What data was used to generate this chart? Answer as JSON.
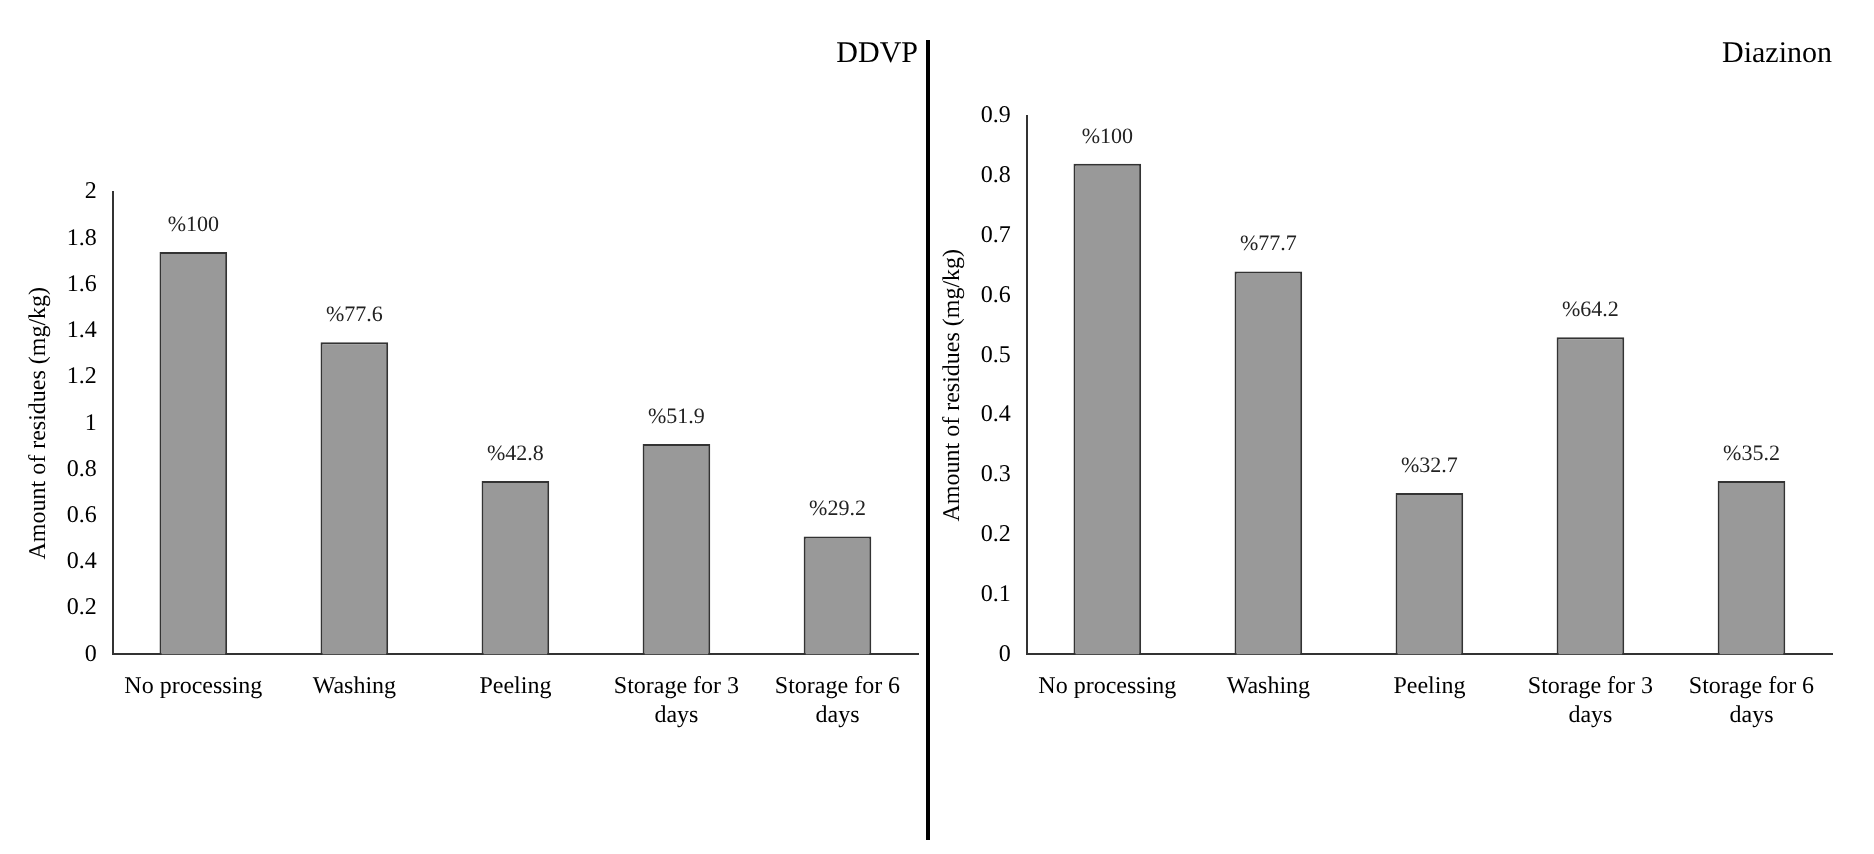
{
  "chart_data": [
    {
      "type": "bar",
      "title": "DDVP",
      "ylabel": "Amount of residues (mg/kg)",
      "categories": [
        "No processing",
        "Washing",
        "Peeling",
        "Storage for 3 days",
        "Storage for 6 days"
      ],
      "values": [
        1.74,
        1.35,
        0.75,
        0.91,
        0.51
      ],
      "color": "#999999",
      "ylim": [
        0,
        2
      ],
      "yticks": [
        0,
        0.2,
        0.4,
        0.6,
        0.8,
        1,
        1.2,
        1.4,
        1.6,
        1.8,
        2
      ],
      "annotations": [
        {
          "text": "%100",
          "x": "No processing",
          "y": 1.74
        },
        {
          "text": "%77.6",
          "x": "Washing",
          "y": 1.35
        },
        {
          "text": "%42.8",
          "x": "Peeling",
          "y": 0.75
        },
        {
          "text": "%51.9",
          "x": "Storage for 3 days",
          "y": 0.91
        },
        {
          "text": "%29.2",
          "x": "Storage for 6 days",
          "y": 0.51
        }
      ]
    },
    {
      "type": "bar",
      "title": "Diazinon",
      "ylabel": "Amount of residues (mg/kg)",
      "categories": [
        "No processing",
        "Washing",
        "Peeling",
        "Storage for 3 days",
        "Storage for 6 days"
      ],
      "values": [
        0.82,
        0.64,
        0.27,
        0.53,
        0.29
      ],
      "color": "#999999",
      "ylim": [
        0,
        0.9
      ],
      "yticks": [
        0,
        0.1,
        0.2,
        0.3,
        0.4,
        0.5,
        0.6,
        0.7,
        0.8,
        0.9
      ],
      "annotations": [
        {
          "text": "%100",
          "x": "No processing",
          "y": 0.82
        },
        {
          "text": "%77.7",
          "x": "Washing",
          "y": 0.64
        },
        {
          "text": "%32.7",
          "x": "Peeling",
          "y": 0.27
        },
        {
          "text": "%64.2",
          "x": "Storage for 3 days",
          "y": 0.53
        },
        {
          "text": "%35.2",
          "x": "Storage for 6 days",
          "y": 0.29
        }
      ]
    }
  ]
}
